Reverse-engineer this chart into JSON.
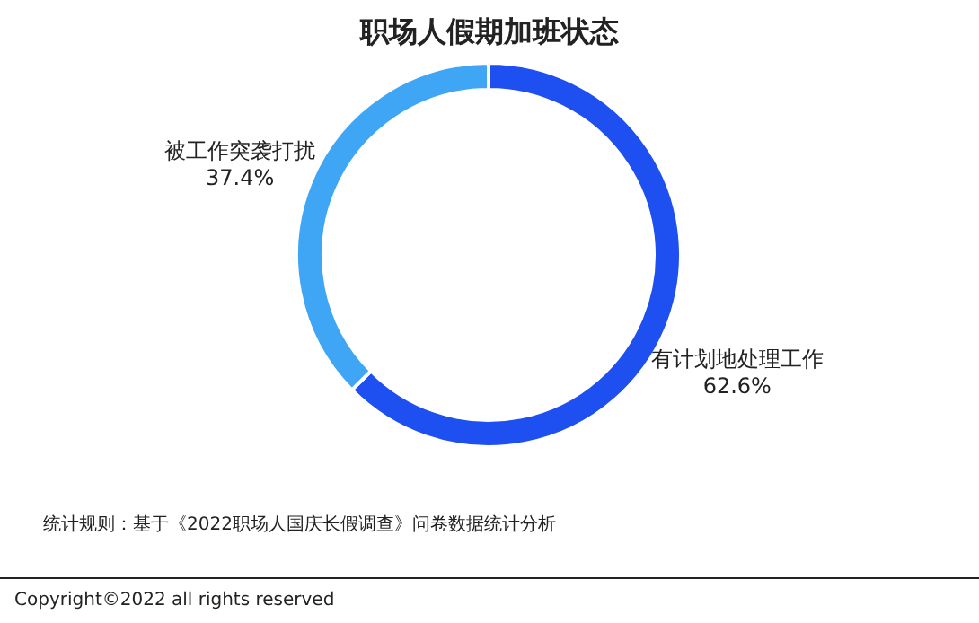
{
  "chart_data": {
    "type": "donut",
    "title": "职场人假期加班状态",
    "categories": [
      "有计划地处理工作",
      "被工作突袭打扰"
    ],
    "values": [
      62.6,
      37.4
    ],
    "value_labels": [
      "62.6%",
      "37.4%"
    ],
    "colors": [
      "#1e4ff0",
      "#3ea6f5"
    ],
    "annotations": [
      "统计规则：基于《2022职场人国庆长假调查》问卷数据统计分析",
      "Copyright©2022 all rights reserved"
    ]
  }
}
